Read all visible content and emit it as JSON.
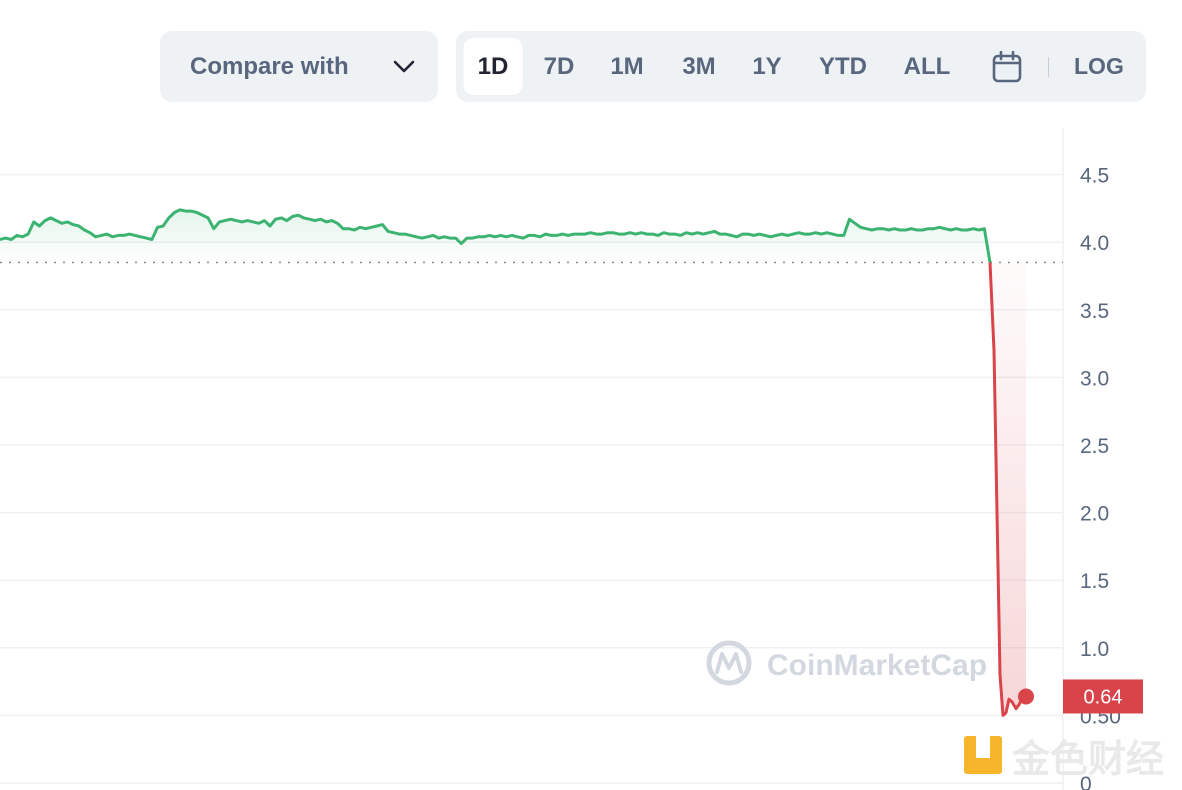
{
  "toolbar": {
    "compare_label": "Compare with",
    "ranges": [
      "1D",
      "7D",
      "1M",
      "3M",
      "1Y",
      "YTD",
      "ALL"
    ],
    "active_range": "1D",
    "log_label": "LOG"
  },
  "chart_data": {
    "type": "line",
    "ylim": [
      0,
      4.75
    ],
    "yticks": [
      "4.5",
      "4.0",
      "3.5",
      "3.0",
      "2.5",
      "2.0",
      "1.5",
      "1.0",
      "0.50",
      "0"
    ],
    "grid": true,
    "reference_line": 3.85,
    "current_price_label": "0.64",
    "up_color": "#3cb371",
    "down_color": "#d9444b",
    "series": [
      {
        "values": [
          4.02,
          4.03,
          4.02,
          4.05,
          4.04,
          4.06,
          4.15,
          4.12,
          4.16,
          4.18,
          4.16,
          4.14,
          4.15,
          4.13,
          4.12,
          4.09,
          4.07,
          4.04,
          4.05,
          4.06,
          4.04,
          4.05,
          4.05,
          4.06,
          4.05,
          4.04,
          4.03,
          4.02,
          4.11,
          4.12,
          4.18,
          4.22,
          4.24,
          4.23,
          4.23,
          4.22,
          4.2,
          4.18,
          4.1,
          4.15,
          4.16,
          4.17,
          4.16,
          4.15,
          4.16,
          4.15,
          4.14,
          4.16,
          4.12,
          4.17,
          4.18,
          4.16,
          4.19,
          4.2,
          4.18,
          4.17,
          4.16,
          4.17,
          4.15,
          4.16,
          4.14,
          4.1,
          4.1,
          4.09,
          4.11,
          4.1,
          4.11,
          4.12,
          4.13,
          4.08,
          4.07,
          4.06,
          4.06,
          4.05,
          4.04,
          4.03,
          4.04,
          4.05,
          4.03,
          4.04,
          4.03,
          4.03,
          3.99,
          4.03,
          4.03,
          4.04,
          4.04,
          4.05,
          4.04,
          4.05,
          4.04,
          4.05,
          4.04,
          4.03,
          4.05,
          4.05,
          4.04,
          4.06,
          4.05,
          4.05,
          4.06,
          4.05,
          4.06,
          4.06,
          4.06,
          4.07,
          4.06,
          4.06,
          4.07,
          4.07,
          4.06,
          4.06,
          4.07,
          4.06,
          4.07,
          4.06,
          4.06,
          4.05,
          4.07,
          4.06,
          4.06,
          4.05,
          4.07,
          4.06,
          4.07,
          4.06,
          4.07,
          4.08,
          4.06,
          4.06,
          4.05,
          4.04,
          4.06,
          4.06,
          4.05,
          4.06,
          4.05,
          4.04,
          4.05,
          4.06,
          4.05,
          4.06,
          4.07,
          4.06,
          4.06,
          4.07,
          4.06,
          4.07,
          4.06,
          4.05,
          4.05,
          4.17,
          4.14,
          4.11,
          4.1,
          4.09,
          4.1,
          4.1,
          4.09,
          4.1,
          4.09,
          4.09,
          4.1,
          4.09,
          4.09,
          4.1,
          4.1,
          4.11,
          4.1,
          4.09,
          4.1,
          4.09,
          4.09,
          4.1,
          4.09,
          4.1,
          3.85
        ]
      },
      {
        "values": [
          3.85,
          3.2,
          2.0,
          0.8,
          0.5,
          0.52,
          0.62,
          0.6,
          0.55,
          0.58,
          0.62,
          0.64
        ]
      }
    ]
  },
  "watermarks": {
    "coinmarketcap": "CoinMarketCap",
    "jinse": "金色财经"
  }
}
